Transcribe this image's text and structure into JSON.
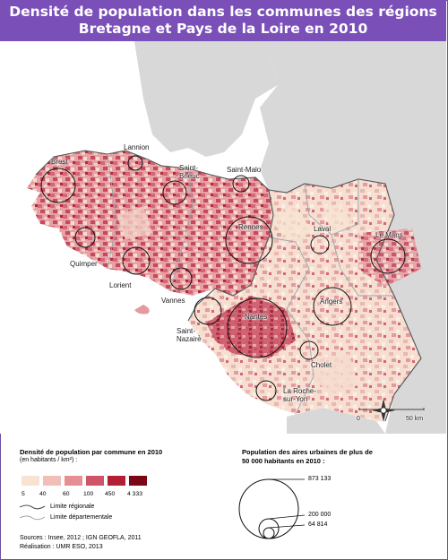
{
  "title_line1": "Densité de population dans les communes des régions",
  "title_line2": "Bretagne et Pays de la Loire en 2010",
  "cities": [
    {
      "id": "brest",
      "label": "Brest"
    },
    {
      "id": "lannion",
      "label": "Lannion"
    },
    {
      "id": "saint-brieuc",
      "label": "Saint-\nBrieuc"
    },
    {
      "id": "saint-malo",
      "label": "Saint-Malo"
    },
    {
      "id": "rennes",
      "label": "Rennes"
    },
    {
      "id": "laval",
      "label": "Laval"
    },
    {
      "id": "le-mans",
      "label": "Le Mans"
    },
    {
      "id": "quimper",
      "label": "Quimper"
    },
    {
      "id": "lorient",
      "label": "Lorient"
    },
    {
      "id": "vannes",
      "label": "Vannes"
    },
    {
      "id": "angers",
      "label": "Angers"
    },
    {
      "id": "nantes",
      "label": "Nantes"
    },
    {
      "id": "saint-nazaire",
      "label": "Saint-\nNazaire"
    },
    {
      "id": "cholet",
      "label": "Cholet"
    },
    {
      "id": "la-roche-sur-yon",
      "label": "La Roche-\nsur-Yon"
    }
  ],
  "scalebar": {
    "start": "0",
    "end": "50 km"
  },
  "legend": {
    "density_title": "Densité de population par commune en 2010",
    "density_unit": "(en habitants / km²) :",
    "class_breaks": [
      "5",
      "40",
      "60",
      "100",
      "450",
      "4 333"
    ],
    "class_colors": [
      "#f8e3d2",
      "#f2bfb8",
      "#e58e93",
      "#cf5467",
      "#b21f35",
      "#7a0716"
    ],
    "regional_limit": "Limite régionale",
    "departmental_limit": "Limite départementale",
    "pop_title_line1": "Population des aires urbaines de plus de",
    "pop_title_line2": "50 000 habitants en 2010 :",
    "pop_values": [
      "873 133",
      "200 000",
      "64 814"
    ]
  },
  "sources": "Sources : Insee, 2012 ; IGN GEOFLA, 2011",
  "realisation": "Réalisation : UMR ESO, 2013"
}
